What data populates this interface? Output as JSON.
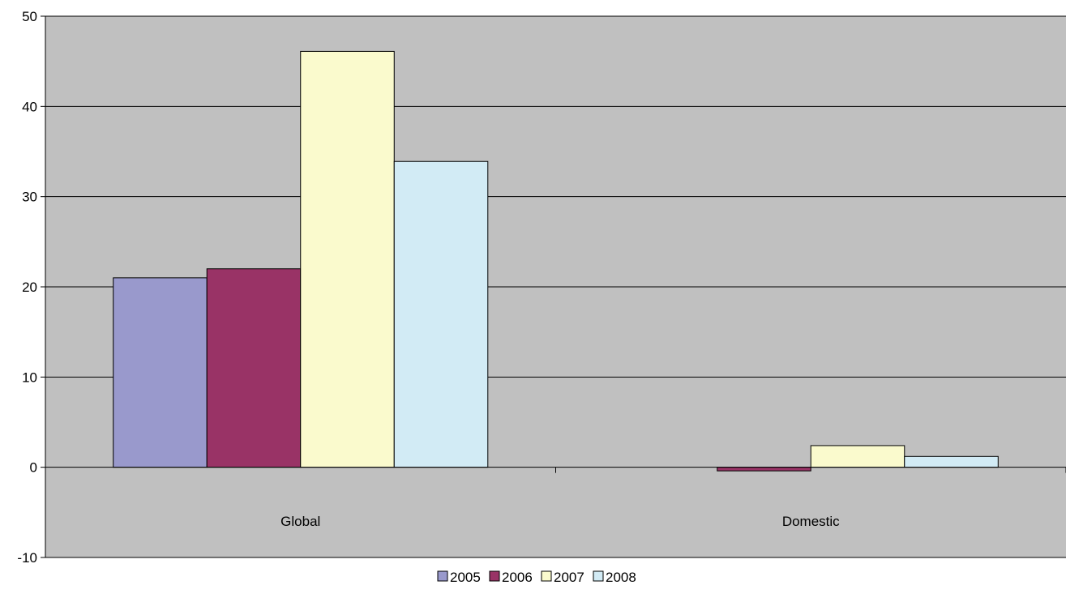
{
  "chart_data": {
    "type": "bar",
    "title": "",
    "xlabel": "",
    "ylabel": "",
    "categories": [
      "Global",
      "Domestic"
    ],
    "ylim": [
      -10,
      50
    ],
    "y_ticks": [
      -10,
      0,
      10,
      20,
      30,
      40,
      50
    ],
    "grid": true,
    "legend_position": "bottom",
    "plot_background": "#c0c0c0",
    "series": [
      {
        "name": "2005",
        "color": "#9999cc",
        "values": [
          21,
          0
        ]
      },
      {
        "name": "2006",
        "color": "#993366",
        "values": [
          22,
          -0.4
        ]
      },
      {
        "name": "2007",
        "color": "#fafacd",
        "values": [
          46.1,
          2.4
        ]
      },
      {
        "name": "2008",
        "color": "#d2ebf5",
        "values": [
          33.9,
          1.2
        ]
      }
    ]
  }
}
